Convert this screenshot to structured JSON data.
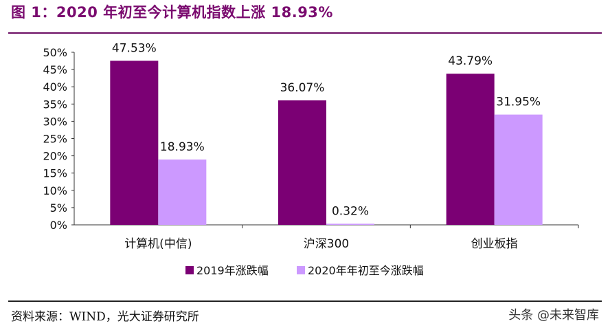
{
  "header": {
    "title": "图 1：2020 年初至今计算机指数上涨 18.93%"
  },
  "footer": {
    "source": "资料来源：WIND，光大证券研究所",
    "watermark": "头条 @未来智库"
  },
  "colors": {
    "title": "#7a0b6f",
    "series_2019": "#7b0074",
    "series_2020": "#cc99ff"
  },
  "chart_data": {
    "type": "bar",
    "categories": [
      "计算机(中信)",
      "沪深300",
      "创业板指"
    ],
    "series": [
      {
        "name": "2019年涨跌幅",
        "values": [
          47.53,
          36.07,
          43.79
        ],
        "labels": [
          "47.53%",
          "36.07%",
          "43.79%"
        ],
        "color": "#7b0074"
      },
      {
        "name": "2020年年初至今涨跌幅",
        "values": [
          18.93,
          0.32,
          31.95
        ],
        "labels": [
          "18.93%",
          "0.32%",
          "31.95%"
        ],
        "color": "#cc99ff"
      }
    ],
    "yticks": [
      "0%",
      "5%",
      "10%",
      "15%",
      "20%",
      "25%",
      "30%",
      "35%",
      "40%",
      "45%",
      "50%"
    ],
    "ylim": [
      0,
      50
    ],
    "grid": false,
    "legend": "bottom"
  }
}
